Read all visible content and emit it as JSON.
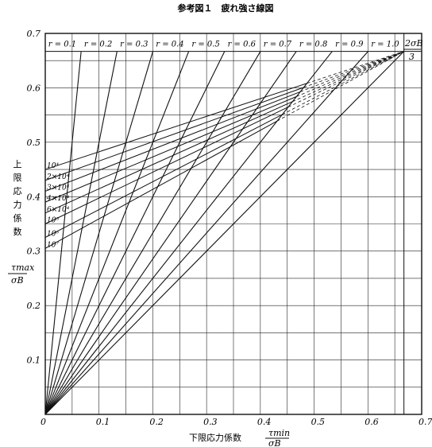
{
  "chart_data": {
    "type": "line",
    "title": "参考図１　疲れ強さ線図",
    "xlabel": "下限応力係数",
    "xlabel_fraction": {
      "numerator": "τmin",
      "denominator": "σB"
    },
    "ylabel_chars": [
      "上",
      "限",
      "応",
      "力",
      "係",
      "数"
    ],
    "ylabel_fraction": {
      "numerator": "τmax",
      "denominator": "σB"
    },
    "xlim": [
      0,
      0.7
    ],
    "ylim": [
      0,
      0.7
    ],
    "grid": true,
    "x_ticks": [
      "0",
      "0.1",
      "0.2",
      "0.3",
      "0.4",
      "0.5",
      "0.6",
      "0.7"
    ],
    "y_ticks": [
      "0.1",
      "0.2",
      "0.3",
      "0.4",
      "0.5",
      "0.6",
      "0.7"
    ],
    "limit_label_numerator": "2σB",
    "limit_label_denominator": "3",
    "limit_value": 0.667,
    "stress_ratio_lines": [
      {
        "label": "r = 0.1",
        "ratio": 0.1
      },
      {
        "label": "r = 0.2",
        "ratio": 0.2
      },
      {
        "label": "r = 0.3",
        "ratio": 0.3
      },
      {
        "label": "r = 0.4",
        "ratio": 0.4
      },
      {
        "label": "r = 0.5",
        "ratio": 0.5
      },
      {
        "label": "r = 0.6",
        "ratio": 0.6
      },
      {
        "label": "r = 0.7",
        "ratio": 0.7
      },
      {
        "label": "r = 0.8",
        "ratio": 0.8
      },
      {
        "label": "r = 0.9",
        "ratio": 0.9
      },
      {
        "label": "r = 1.0",
        "ratio": 1.0
      }
    ],
    "cycle_lines": [
      {
        "label": "10⁴",
        "y0": 0.45
      },
      {
        "label": "2×10⁴",
        "y0": 0.43
      },
      {
        "label": "3×10⁴",
        "y0": 0.41
      },
      {
        "label": "4×10⁴",
        "y0": 0.39
      },
      {
        "label": "6×10⁴",
        "y0": 0.37
      },
      {
        "label": "10⁵",
        "y0": 0.35
      },
      {
        "label": "10⁶",
        "y0": 0.325
      },
      {
        "label": "10⁷",
        "y0": 0.305
      }
    ]
  }
}
